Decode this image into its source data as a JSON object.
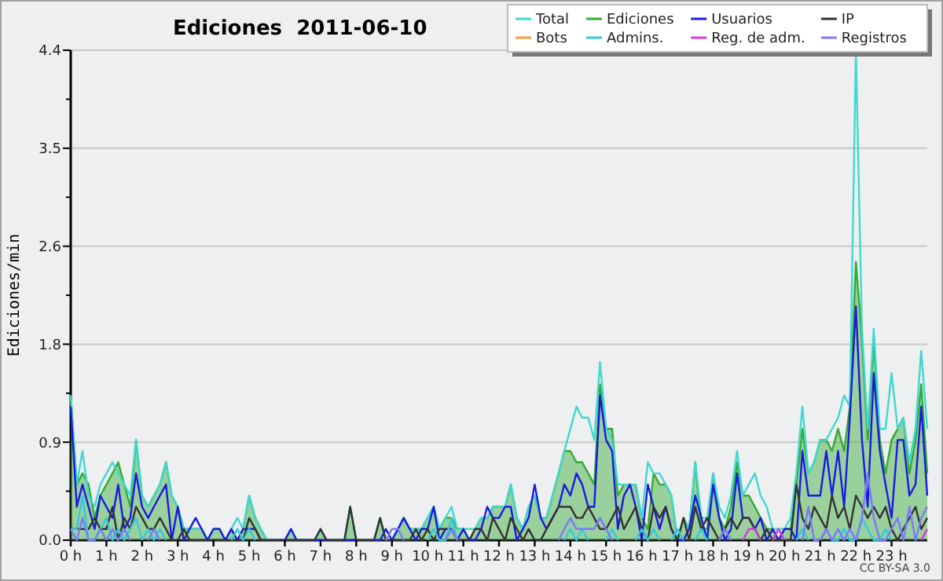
{
  "chart_data": {
    "type": "line",
    "title": "Ediciones  2011-06-10",
    "ylabel": "Ediciones/min",
    "annotations": [
      "CC BY-SA 3.0"
    ],
    "xlim": [
      0,
      24
    ],
    "xticks": [
      {
        "value": 0,
        "label": "0 h"
      },
      {
        "value": 1,
        "label": "1 h"
      },
      {
        "value": 2,
        "label": "2 h"
      },
      {
        "value": 3,
        "label": "3 h"
      },
      {
        "value": 4,
        "label": "4 h"
      },
      {
        "value": 5,
        "label": "5 h"
      },
      {
        "value": 6,
        "label": "6 h"
      },
      {
        "value": 7,
        "label": "7 h"
      },
      {
        "value": 8,
        "label": "8 h"
      },
      {
        "value": 9,
        "label": "9 h"
      },
      {
        "value": 10,
        "label": "10 h"
      },
      {
        "value": 11,
        "label": "11 h"
      },
      {
        "value": 12,
        "label": "12 h"
      },
      {
        "value": 13,
        "label": "13 h"
      },
      {
        "value": 14,
        "label": "14 h"
      },
      {
        "value": 15,
        "label": "15 h"
      },
      {
        "value": 16,
        "label": "16 h"
      },
      {
        "value": 17,
        "label": "17 h"
      },
      {
        "value": 18,
        "label": "18 h"
      },
      {
        "value": 19,
        "label": "19 h"
      },
      {
        "value": 20,
        "label": "20 h"
      },
      {
        "value": 21,
        "label": "21 h"
      },
      {
        "value": 22,
        "label": "22 h"
      },
      {
        "value": 23,
        "label": "23 h"
      }
    ],
    "ylim": [
      0,
      4.4
    ],
    "yticks": [
      {
        "value": 0,
        "label": "0.0"
      },
      {
        "value": 0.44,
        "label": null
      },
      {
        "value": 0.88,
        "label": "0.9"
      },
      {
        "value": 1.32,
        "label": null
      },
      {
        "value": 1.76,
        "label": "1.8"
      },
      {
        "value": 2.2,
        "label": null
      },
      {
        "value": 2.64,
        "label": "2.6"
      },
      {
        "value": 3.08,
        "label": null
      },
      {
        "value": 3.52,
        "label": "3.5"
      },
      {
        "value": 3.96,
        "label": null
      },
      {
        "value": 4.4,
        "label": "4.4"
      }
    ],
    "grid": "y",
    "legend": "top right",
    "x": [
      0,
      0.17,
      0.33,
      0.5,
      0.67,
      0.83,
      1,
      1.17,
      1.33,
      1.5,
      1.67,
      1.83,
      2,
      2.17,
      2.33,
      2.5,
      2.67,
      2.83,
      3,
      3.17,
      3.33,
      3.5,
      3.67,
      3.83,
      4,
      4.17,
      4.33,
      4.5,
      4.67,
      4.83,
      5,
      5.17,
      5.33,
      5.5,
      5.67,
      5.83,
      6,
      6.17,
      6.33,
      6.5,
      6.67,
      6.83,
      7,
      7.17,
      7.33,
      7.5,
      7.67,
      7.83,
      8,
      8.17,
      8.33,
      8.5,
      8.67,
      8.83,
      9,
      9.17,
      9.33,
      9.5,
      9.67,
      9.83,
      10,
      10.17,
      10.33,
      10.5,
      10.67,
      10.83,
      11,
      11.17,
      11.33,
      11.5,
      11.67,
      11.83,
      12,
      12.17,
      12.33,
      12.5,
      12.67,
      12.83,
      13,
      13.17,
      13.33,
      13.5,
      13.67,
      13.83,
      14,
      14.17,
      14.33,
      14.5,
      14.67,
      14.83,
      15,
      15.17,
      15.33,
      15.5,
      15.67,
      15.83,
      16,
      16.17,
      16.33,
      16.5,
      16.67,
      16.83,
      17,
      17.17,
      17.33,
      17.5,
      17.67,
      17.83,
      18,
      18.17,
      18.33,
      18.5,
      18.67,
      18.83,
      19,
      19.17,
      19.33,
      19.5,
      19.67,
      19.83,
      20,
      20.17,
      20.33,
      20.5,
      20.67,
      20.83,
      21,
      21.17,
      21.33,
      21.5,
      21.67,
      21.83,
      22,
      22.17,
      22.33,
      22.5,
      22.67,
      22.83,
      23,
      23.17,
      23.33,
      23.5,
      23.67,
      23.83,
      24
    ],
    "series": [
      {
        "name": "Total",
        "color": "#40d8d0",
        "values": [
          1.3,
          0.5,
          0.8,
          0.4,
          0.3,
          0.5,
          0.6,
          0.7,
          0.6,
          0.5,
          0.4,
          0.9,
          0.4,
          0.3,
          0.4,
          0.5,
          0.7,
          0.4,
          0.3,
          0.1,
          0.1,
          0.1,
          0.1,
          0,
          0.1,
          0.1,
          0,
          0.1,
          0.2,
          0.1,
          0.4,
          0.2,
          0.1,
          0,
          0,
          0,
          0,
          0.1,
          0,
          0,
          0,
          0,
          0.1,
          0,
          0,
          0,
          0,
          0.3,
          0,
          0,
          0,
          0,
          0.2,
          0,
          0,
          0.1,
          0.2,
          0.1,
          0.1,
          0.1,
          0.2,
          0.3,
          0.1,
          0.2,
          0.3,
          0.1,
          0.1,
          0.1,
          0.1,
          0.2,
          0.2,
          0.3,
          0.3,
          0.3,
          0.5,
          0.2,
          0.1,
          0.3,
          0.4,
          0.2,
          0.2,
          0.4,
          0.6,
          0.8,
          1.0,
          1.2,
          1.1,
          1.1,
          0.9,
          1.6,
          1.0,
          0.9,
          0.5,
          0.5,
          0.5,
          0.5,
          0.2,
          0.7,
          0.6,
          0.6,
          0.5,
          0.4,
          0,
          0.2,
          0.1,
          0.7,
          0.2,
          0.2,
          0.6,
          0.3,
          0.2,
          0.4,
          0.8,
          0.4,
          0.5,
          0.6,
          0.4,
          0.3,
          0.1,
          0.1,
          0.1,
          0.2,
          0.6,
          1.2,
          0.6,
          0.7,
          0.9,
          0.9,
          1.0,
          1.1,
          1.3,
          1.2,
          4.4,
          1.9,
          1.0,
          1.9,
          1.0,
          1.0,
          1.5,
          1.0,
          1.1,
          0.7,
          1.0,
          1.7,
          1.0
        ]
      },
      {
        "name": "Ediciones",
        "type": "area",
        "color": "#33aa33",
        "values": [
          1.3,
          0.5,
          0.6,
          0.5,
          0.2,
          0.4,
          0.5,
          0.6,
          0.7,
          0.5,
          0.3,
          0.9,
          0.4,
          0.3,
          0.4,
          0.5,
          0.7,
          0.4,
          0.3,
          0.1,
          0.1,
          0.1,
          0.1,
          0,
          0.1,
          0.1,
          0,
          0.1,
          0,
          0.1,
          0.4,
          0.2,
          0.1,
          0,
          0,
          0,
          0,
          0.1,
          0,
          0,
          0,
          0,
          0.1,
          0,
          0,
          0,
          0,
          0.3,
          0,
          0,
          0,
          0,
          0.2,
          0,
          0,
          0.1,
          0.2,
          0.1,
          0.1,
          0.1,
          0.2,
          0.3,
          0.1,
          0.2,
          0.2,
          0.1,
          0.1,
          0,
          0.1,
          0.2,
          0.2,
          0.3,
          0.3,
          0.3,
          0.5,
          0.2,
          0.1,
          0.3,
          0.4,
          0.2,
          0.2,
          0.4,
          0.6,
          0.8,
          0.8,
          0.7,
          0.7,
          0.6,
          0.5,
          1.4,
          1.0,
          1.0,
          0.4,
          0.5,
          0.5,
          0.5,
          0.2,
          0.1,
          0.6,
          0.5,
          0.5,
          0.4,
          0,
          0.2,
          0.1,
          0.7,
          0.1,
          0.1,
          0.6,
          0.2,
          0.1,
          0.3,
          0.7,
          0.4,
          0.4,
          0.3,
          0.2,
          0.1,
          0.1,
          0,
          0.1,
          0.1,
          0.5,
          1.0,
          0.6,
          0.7,
          0.9,
          0.9,
          0.8,
          1.0,
          0.8,
          1.2,
          2.5,
          1.8,
          0.9,
          1.8,
          0.9,
          0.6,
          0.9,
          1.0,
          1.1,
          0.6,
          0.9,
          1.4,
          0.6
        ]
      },
      {
        "name": "Usuarios",
        "color": "#1a1ae0",
        "values": [
          1.2,
          0.3,
          0.5,
          0.3,
          0.1,
          0.4,
          0.3,
          0.2,
          0.5,
          0.1,
          0.2,
          0.6,
          0.3,
          0.2,
          0.3,
          0.4,
          0.5,
          0,
          0.3,
          0,
          0.1,
          0.2,
          0.1,
          0,
          0.1,
          0.1,
          0,
          0.1,
          0,
          0.1,
          0.1,
          0.1,
          0,
          0,
          0,
          0,
          0,
          0.1,
          0,
          0,
          0,
          0,
          0,
          0,
          0,
          0,
          0,
          0,
          0,
          0,
          0,
          0,
          0,
          0.1,
          0,
          0.1,
          0.2,
          0.1,
          0,
          0.1,
          0.1,
          0.3,
          0,
          0.1,
          0.1,
          0,
          0.1,
          0,
          0,
          0.1,
          0.3,
          0.2,
          0.2,
          0.3,
          0.3,
          0,
          0.1,
          0.2,
          0.5,
          0.2,
          0.1,
          0.2,
          0.3,
          0.5,
          0.4,
          0.6,
          0.5,
          0.3,
          0.3,
          1.3,
          0.9,
          0.8,
          0.1,
          0.4,
          0.5,
          0.3,
          0,
          0.5,
          0.3,
          0.1,
          0.3,
          0.1,
          0,
          0,
          0.1,
          0.4,
          0.2,
          0,
          0.5,
          0.2,
          0,
          0.1,
          0.6,
          0.2,
          0.2,
          0.1,
          0.2,
          0,
          0.1,
          0,
          0.1,
          0.1,
          0,
          0.8,
          0.4,
          0.4,
          0.4,
          0.8,
          0.4,
          0.8,
          0.3,
          1.1,
          2.1,
          0.9,
          0.3,
          1.5,
          0.8,
          0.5,
          0.2,
          0.9,
          0.9,
          0.4,
          0.5,
          1.2,
          0.4
        ]
      },
      {
        "name": "IP",
        "color": "#333333",
        "values": [
          0.1,
          0.1,
          0.1,
          0.1,
          0.2,
          0.1,
          0.1,
          0.3,
          0,
          0.2,
          0.1,
          0.3,
          0.2,
          0.1,
          0.1,
          0.2,
          0.1,
          0,
          0,
          0.1,
          0,
          0,
          0,
          0,
          0,
          0,
          0,
          0,
          0,
          0,
          0.2,
          0.1,
          0,
          0,
          0,
          0,
          0,
          0,
          0,
          0,
          0,
          0,
          0.1,
          0,
          0,
          0,
          0,
          0.3,
          0,
          0,
          0,
          0,
          0.2,
          0,
          0,
          0,
          0,
          0,
          0.1,
          0,
          0.1,
          0,
          0.1,
          0.1,
          0.1,
          0,
          0,
          0,
          0.1,
          0.1,
          0,
          0.2,
          0.1,
          0,
          0.2,
          0.1,
          0,
          0.1,
          0,
          0,
          0.1,
          0.2,
          0.3,
          0.3,
          0.3,
          0.2,
          0.2,
          0.3,
          0.2,
          0.1,
          0.1,
          0.2,
          0.3,
          0.1,
          0.2,
          0.3,
          0.1,
          0,
          0.3,
          0.2,
          0.3,
          0.1,
          0,
          0.2,
          0,
          0.3,
          0.1,
          0.2,
          0.1,
          0,
          0.1,
          0.2,
          0.1,
          0.2,
          0.2,
          0.1,
          0,
          0.1,
          0,
          0,
          0,
          0,
          0.5,
          0.2,
          0.1,
          0.3,
          0.2,
          0.1,
          0.4,
          0.2,
          0.3,
          0.1,
          0.4,
          0.3,
          0.2,
          0.3,
          0.2,
          0.3,
          0.1,
          0,
          0.1,
          0.2,
          0.3,
          0.1,
          0.2
        ]
      },
      {
        "name": "Bots",
        "color": "#ff9933",
        "values": [
          null,
          null,
          null,
          null,
          null,
          null,
          null,
          null,
          null,
          null,
          null,
          null,
          null,
          null,
          null,
          null,
          null,
          null,
          null,
          null,
          null,
          null,
          null,
          null,
          null,
          null,
          null,
          null,
          null,
          null,
          null,
          null,
          null,
          null,
          null,
          null,
          null,
          null,
          null,
          null,
          null,
          null,
          null,
          null,
          null,
          null,
          null,
          null,
          null,
          null,
          null,
          null,
          null,
          null,
          null,
          null,
          null,
          null,
          null,
          null,
          null,
          null,
          null,
          null,
          null,
          null,
          null,
          null,
          null,
          null,
          null,
          null,
          null,
          null,
          null,
          null,
          null,
          null,
          null,
          null,
          null,
          null,
          null,
          null,
          null,
          null,
          null,
          null,
          null,
          null,
          null,
          null,
          null,
          null,
          null,
          null,
          null,
          null,
          null,
          null,
          null,
          null,
          null,
          null,
          null,
          null,
          null,
          null,
          null,
          null,
          null,
          null,
          null,
          null,
          null,
          null,
          null,
          null,
          null,
          null,
          null,
          null,
          null,
          null,
          null,
          null,
          null,
          null,
          null,
          null,
          null,
          null,
          null,
          null,
          null,
          null,
          null,
          null,
          null,
          null,
          null,
          null,
          null,
          null,
          null
        ]
      },
      {
        "name": "Admins.",
        "color": "#33c8e0",
        "values": [
          0.1,
          0.1,
          0.4,
          0,
          0,
          0.1,
          0.2,
          0,
          0.1,
          0,
          0.1,
          0.2,
          0,
          0.1,
          0,
          0.1,
          0,
          null,
          null,
          null,
          null,
          null,
          null,
          null,
          null,
          null,
          null,
          0,
          0.1,
          0,
          0.1,
          0,
          null,
          null,
          null,
          null,
          null,
          null,
          null,
          null,
          null,
          null,
          null,
          null,
          null,
          null,
          null,
          null,
          null,
          null,
          null,
          null,
          null,
          null,
          null,
          null,
          null,
          null,
          null,
          null,
          0,
          0.1,
          0,
          0,
          0.2,
          0,
          null,
          null,
          null,
          null,
          null,
          null,
          null,
          null,
          null,
          null,
          null,
          null,
          null,
          null,
          null,
          null,
          null,
          0,
          0.1,
          0,
          0.1,
          0,
          null,
          null,
          0,
          0.1,
          0,
          null,
          null,
          0,
          0.1,
          0,
          0.1,
          0,
          null,
          0,
          0.1,
          0,
          null,
          0,
          0.1,
          0,
          null,
          null,
          null,
          null,
          null,
          null,
          null,
          null,
          null,
          null,
          null,
          null,
          null,
          null,
          0,
          0.1,
          0,
          null,
          0,
          0.1,
          0,
          0,
          0.1,
          0,
          0,
          0.2,
          0.1,
          0,
          0,
          0.1,
          0,
          null,
          null,
          null,
          null,
          null,
          null
        ]
      },
      {
        "name": "Reg. de adm.",
        "color": "#dd33dd",
        "values": [
          null,
          null,
          null,
          null,
          null,
          null,
          null,
          null,
          null,
          null,
          null,
          null,
          null,
          null,
          null,
          null,
          null,
          null,
          null,
          null,
          null,
          null,
          null,
          null,
          null,
          null,
          null,
          null,
          null,
          null,
          null,
          null,
          null,
          null,
          null,
          null,
          null,
          null,
          null,
          null,
          null,
          null,
          null,
          null,
          null,
          null,
          null,
          null,
          null,
          null,
          null,
          null,
          null,
          null,
          null,
          null,
          null,
          null,
          null,
          null,
          null,
          null,
          null,
          null,
          null,
          null,
          null,
          null,
          null,
          null,
          null,
          null,
          null,
          null,
          null,
          null,
          null,
          null,
          null,
          null,
          null,
          null,
          null,
          null,
          null,
          null,
          null,
          null,
          null,
          null,
          null,
          null,
          null,
          null,
          null,
          null,
          null,
          null,
          null,
          null,
          null,
          null,
          null,
          null,
          null,
          null,
          null,
          null,
          null,
          null,
          null,
          null,
          null,
          0,
          0.1,
          0.1,
          0,
          null,
          0,
          0.1,
          0,
          null,
          null,
          null,
          null,
          null,
          0,
          0.1,
          0,
          null,
          null,
          null,
          null,
          null,
          null,
          null,
          null,
          null,
          null,
          null,
          null,
          null,
          null,
          0,
          0.1
        ]
      },
      {
        "name": "Registros",
        "color": "#7a7aff",
        "values": [
          0.1,
          0,
          0.2,
          0,
          0,
          0.1,
          0,
          0.1,
          0,
          0.1,
          0,
          null,
          null,
          0,
          0.1,
          0,
          null,
          null,
          null,
          null,
          null,
          null,
          null,
          null,
          null,
          null,
          null,
          null,
          null,
          null,
          null,
          null,
          null,
          null,
          null,
          null,
          null,
          null,
          null,
          null,
          null,
          null,
          null,
          null,
          null,
          null,
          null,
          null,
          null,
          null,
          null,
          null,
          null,
          0,
          0.1,
          0.1,
          0,
          null,
          null,
          null,
          null,
          null,
          null,
          0,
          0.1,
          0,
          null,
          null,
          null,
          null,
          null,
          null,
          null,
          null,
          null,
          null,
          null,
          null,
          null,
          null,
          null,
          null,
          0,
          0.1,
          0.2,
          0.1,
          0.1,
          0.1,
          0.1,
          0.2,
          0.1,
          0,
          null,
          null,
          null,
          null,
          null,
          null,
          null,
          null,
          null,
          null,
          null,
          null,
          null,
          null,
          null,
          null,
          null,
          0,
          0.1,
          0,
          null,
          null,
          null,
          null,
          null,
          null,
          null,
          null,
          null,
          null,
          null,
          0,
          0.3,
          0,
          0,
          0.1,
          0,
          0.1,
          0,
          0.1,
          0,
          0.2,
          0.6,
          0.2,
          0,
          0,
          0.1,
          0.2,
          0,
          0.3,
          0,
          0.2,
          0.3
        ]
      }
    ]
  }
}
